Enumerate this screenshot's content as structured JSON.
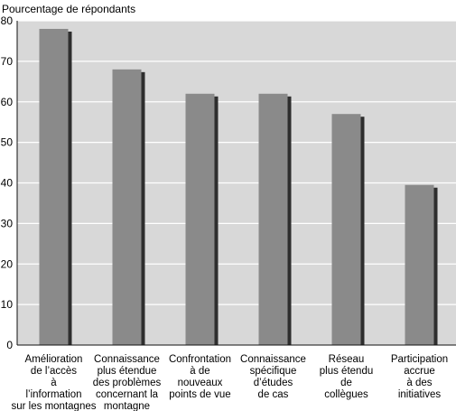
{
  "chart_data": {
    "type": "bar",
    "ylabel": "Pourcentage de répondants",
    "xlabel": "",
    "title": "",
    "ylim": [
      0,
      80
    ],
    "yticks": [
      0,
      10,
      20,
      30,
      40,
      50,
      60,
      70,
      80
    ],
    "grid": true,
    "categories": [
      [
        "Amélioration",
        "de l’accès",
        "à",
        "l’information",
        "sur les montagnes"
      ],
      [
        "Connaissance",
        "plus étendue",
        "des problèmes",
        "concernant la",
        "montagne"
      ],
      [
        "Confrontation",
        "à de",
        "nouveaux",
        "points de vue"
      ],
      [
        "Connaissance",
        "spécifique",
        "d’études",
        "de cas"
      ],
      [
        "Réseau",
        "plus étendu",
        "de",
        "collègues"
      ],
      [
        "Participation",
        "accrue",
        "à des",
        "initiatives"
      ]
    ],
    "values": [
      78,
      68,
      62,
      62,
      57,
      39.5
    ],
    "colors": {
      "plot_background": "#d8d8d8",
      "grid": "#ffffff",
      "bar": "#8a8a8a",
      "bar_shadow": "#2e2e2e",
      "axis": "#111111"
    }
  }
}
